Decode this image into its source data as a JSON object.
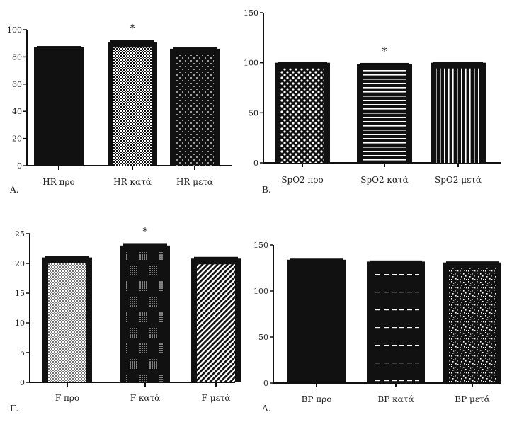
{
  "chart_data": [
    {
      "type": "bar",
      "panel_label": "A.",
      "categories": [
        "HR προ",
        "HR κατά",
        "HR μετά"
      ],
      "values": [
        87,
        91,
        86
      ],
      "error": [
        1,
        1.5,
        1
      ],
      "significance": [
        "",
        "*",
        ""
      ],
      "patterns": [
        "solid",
        "checker",
        "dots-sparse"
      ],
      "ylim": [
        0,
        100
      ],
      "yticks": [
        0,
        20,
        40,
        60,
        80,
        100
      ]
    },
    {
      "type": "bar",
      "panel_label": "B.",
      "categories": [
        "SpO2 προ",
        "SpO2 κατά",
        "SpO2 μετά"
      ],
      "values": [
        100,
        99,
        100
      ],
      "error": [
        0.5,
        0.8,
        0.5
      ],
      "significance": [
        "",
        "*",
        ""
      ],
      "patterns": [
        "dots-dense",
        "hlines",
        "vlines"
      ],
      "ylim": [
        0,
        150
      ],
      "yticks": [
        0,
        50,
        100,
        150
      ]
    },
    {
      "type": "bar",
      "panel_label": "Γ.",
      "categories": [
        "F προ",
        "F κατά",
        "F μετά"
      ],
      "values": [
        21,
        23,
        20.8
      ],
      "error": [
        0.3,
        0.4,
        0.3
      ],
      "significance": [
        "",
        "*",
        ""
      ],
      "patterns": [
        "white-dots",
        "dot-blocks",
        "diagonal"
      ],
      "ylim": [
        0,
        25
      ],
      "yticks": [
        0,
        5,
        10,
        15,
        20,
        25
      ]
    },
    {
      "type": "bar",
      "panel_label": "Δ.",
      "categories": [
        "BP προ",
        "BP κατά",
        "BP μετά"
      ],
      "values": [
        134,
        132,
        131
      ],
      "error": [
        1.2,
        1.2,
        1.2
      ],
      "significance": [
        "",
        "",
        ""
      ],
      "patterns": [
        "solid",
        "dashes",
        "speckle"
      ],
      "ylim": [
        0,
        150
      ],
      "yticks": [
        0,
        50,
        100,
        150
      ]
    }
  ]
}
